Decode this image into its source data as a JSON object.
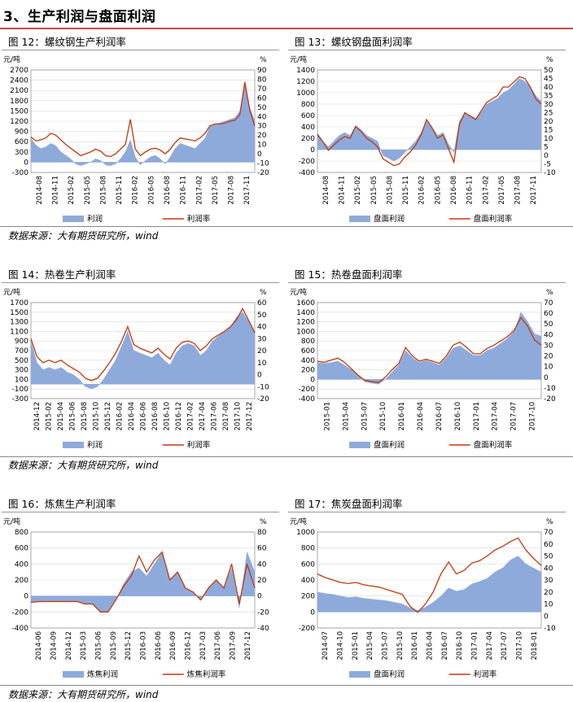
{
  "section_title": "3、生产利润与盘面利润",
  "source_text": "数据来源：大有期货研究所，wind",
  "colors": {
    "area": "#8eaadb",
    "line": "#c0390b"
  },
  "charts": [
    {
      "id": "fig12",
      "title": "图 12：螺纹钢生产利润率",
      "chart_data": {
        "type": "area",
        "ylabel_left": "元/吨",
        "ylabel_right": "%",
        "left_ticks": [
          2700,
          2400,
          2100,
          1800,
          1500,
          1200,
          900,
          600,
          300,
          0,
          -300
        ],
        "right_ticks": [
          90,
          80,
          70,
          60,
          50,
          40,
          30,
          20,
          10,
          0,
          -10,
          -20
        ],
        "ylim_left": [
          -300,
          2700
        ],
        "ylim_right": [
          -20,
          90
        ],
        "x_ticks": [
          "2014-08",
          "2014-11",
          "2015-02",
          "2015-05",
          "2015-08",
          "2015-11",
          "2016-02",
          "2016-05",
          "2016-08",
          "2016-11",
          "2017-02",
          "2017-05",
          "2017-08",
          "2017-11"
        ],
        "series": [
          {
            "name": "利润",
            "axis": "left",
            "kind": "area",
            "values": [
              700,
              500,
              400,
              450,
              550,
              480,
              300,
              200,
              100,
              -50,
              -100,
              -50,
              0,
              100,
              50,
              -80,
              -100,
              -50,
              100,
              300,
              650,
              150,
              -80,
              50,
              150,
              200,
              100,
              -50,
              150,
              400,
              550,
              500,
              450,
              400,
              550,
              700,
              1050,
              1100,
              1150,
              1200,
              1250,
              1300,
              1500,
              2300,
              1600,
              1200
            ]
          },
          {
            "name": "利润率",
            "axis": "right",
            "kind": "line",
            "values": [
              18,
              14,
              15,
              17,
              22,
              20,
              15,
              10,
              6,
              2,
              -2,
              0,
              2,
              5,
              3,
              -2,
              -3,
              0,
              5,
              10,
              37,
              5,
              -2,
              2,
              5,
              6,
              4,
              0,
              5,
              12,
              17,
              16,
              15,
              14,
              17,
              22,
              30,
              32,
              32,
              33,
              35,
              36,
              42,
              77,
              47,
              30
            ]
          }
        ]
      },
      "legend": [
        "利润",
        "利润率"
      ]
    },
    {
      "id": "fig13",
      "title": "图 13：螺纹钢盘面利润率",
      "chart_data": {
        "type": "area",
        "ylabel_left": "元/吨",
        "ylabel_right": "%",
        "left_ticks": [
          1400,
          1200,
          1000,
          800,
          600,
          400,
          200,
          0,
          -200,
          -400
        ],
        "right_ticks": [
          50,
          45,
          40,
          35,
          30,
          25,
          20,
          15,
          10,
          5,
          0,
          -5,
          -10
        ],
        "ylim_left": [
          -400,
          1400
        ],
        "ylim_right": [
          -10,
          50
        ],
        "x_ticks": [
          "2014-08",
          "2014-11",
          "2015-02",
          "2015-05",
          "2015-08",
          "2015-11",
          "2016-02",
          "2016-05",
          "2016-08",
          "2016-11",
          "2017-02",
          "2017-05",
          "2017-08",
          "2017-11"
        ],
        "series": [
          {
            "name": "盘面利润",
            "axis": "left",
            "kind": "area",
            "values": [
              300,
              150,
              50,
              150,
              250,
              300,
              250,
              420,
              350,
              250,
              200,
              150,
              -100,
              -150,
              -200,
              -150,
              -50,
              50,
              150,
              300,
              500,
              400,
              250,
              300,
              100,
              -50,
              500,
              650,
              600,
              550,
              650,
              800,
              850,
              900,
              1000,
              1050,
              1150,
              1250,
              1200,
              1100,
              950,
              850
            ]
          },
          {
            "name": "盘面利润率",
            "axis": "right",
            "kind": "line",
            "values": [
              12,
              8,
              3,
              6,
              9,
              11,
              10,
              17,
              14,
              10,
              8,
              5,
              -2,
              -4,
              -6,
              -5,
              -1,
              2,
              6,
              12,
              21,
              16,
              10,
              12,
              4,
              -4,
              18,
              25,
              23,
              21,
              26,
              31,
              33,
              35,
              40,
              40,
              43,
              46,
              45,
              40,
              33,
              30
            ]
          }
        ]
      },
      "legend": [
        "盘面利润",
        "盘面利润率"
      ]
    },
    {
      "id": "fig14",
      "title": "图 14：热卷生产利润率",
      "chart_data": {
        "type": "area",
        "ylabel_left": "元/吨",
        "ylabel_right": "%",
        "left_ticks": [
          1700,
          1500,
          1300,
          1100,
          900,
          700,
          500,
          300,
          100,
          -100,
          -300
        ],
        "right_ticks": [
          60,
          50,
          40,
          30,
          20,
          10,
          0,
          -10,
          -20
        ],
        "ylim_left": [
          -300,
          1700
        ],
        "ylim_right": [
          -20,
          60
        ],
        "x_ticks": [
          "2014-12",
          "2015-02",
          "2015-04",
          "2015-06",
          "2015-08",
          "2015-10",
          "2015-12",
          "2016-02",
          "2016-04",
          "2016-06",
          "2016-08",
          "2016-10",
          "2016-12",
          "2017-02",
          "2017-04",
          "2017-06",
          "2017-08",
          "2017-10",
          "2017-12"
        ],
        "series": [
          {
            "name": "利润",
            "axis": "left",
            "kind": "area",
            "values": [
              900,
              450,
              300,
              350,
              300,
              350,
              250,
              200,
              100,
              -50,
              -100,
              -50,
              100,
              300,
              500,
              800,
              1100,
              700,
              650,
              600,
              550,
              650,
              500,
              400,
              650,
              800,
              850,
              800,
              600,
              700,
              900,
              1000,
              1100,
              1200,
              1400,
              1500,
              1300,
              1050
            ]
          },
          {
            "name": "利润率",
            "axis": "right",
            "kind": "line",
            "values": [
              30,
              15,
              10,
              12,
              10,
              12,
              8,
              5,
              2,
              -3,
              -5,
              -3,
              3,
              10,
              18,
              28,
              40,
              25,
              22,
              20,
              18,
              22,
              17,
              13,
              22,
              27,
              28,
              26,
              20,
              24,
              30,
              33,
              36,
              40,
              46,
              55,
              45,
              35
            ]
          }
        ]
      },
      "legend": [
        "利润",
        "利润率"
      ]
    },
    {
      "id": "fig15",
      "title": "图 15：热卷盘面利润率",
      "chart_data": {
        "type": "area",
        "ylabel_left": "元/吨",
        "ylabel_right": "%",
        "left_ticks": [
          1600,
          1400,
          1200,
          1000,
          800,
          600,
          400,
          200,
          0,
          -200,
          -400
        ],
        "right_ticks": [
          70,
          60,
          50,
          40,
          30,
          20,
          10,
          0,
          -10,
          -20
        ],
        "ylim_left": [
          -400,
          1600
        ],
        "ylim_right": [
          -20,
          70
        ],
        "x_ticks": [
          "2015-01",
          "2015-04",
          "2015-07",
          "2015-10",
          "2016-01",
          "2016-04",
          "2016-07",
          "2016-10",
          "2017-01",
          "2017-04",
          "2017-07",
          "2017-10"
        ],
        "series": [
          {
            "name": "盘面利润",
            "axis": "left",
            "kind": "area",
            "values": [
              350,
              330,
              350,
              380,
              300,
              200,
              100,
              -50,
              -80,
              -100,
              0,
              150,
              300,
              600,
              450,
              350,
              400,
              350,
              300,
              450,
              650,
              700,
              600,
              500,
              500,
              600,
              650,
              750,
              850,
              1000,
              1400,
              1200,
              950,
              900
            ]
          },
          {
            "name": "盘面利润率",
            "axis": "right",
            "kind": "line",
            "values": [
              15,
              14,
              16,
              18,
              14,
              8,
              2,
              -3,
              -4,
              -5,
              0,
              7,
              13,
              28,
              20,
              15,
              17,
              15,
              13,
              20,
              30,
              33,
              28,
              22,
              22,
              27,
              30,
              34,
              38,
              44,
              56,
              48,
              35,
              30
            ]
          }
        ]
      },
      "legend": [
        "盘面利润",
        "盘面利润率"
      ]
    },
    {
      "id": "fig16",
      "title": "图 16：炼焦生产利润率",
      "chart_data": {
        "type": "area",
        "ylabel_left": "元/吨",
        "ylabel_right": "%",
        "left_ticks": [
          800,
          600,
          400,
          200,
          0,
          -200,
          -400
        ],
        "right_ticks": [
          80,
          60,
          40,
          20,
          0,
          -20,
          -40
        ],
        "ylim_left": [
          -400,
          800
        ],
        "ylim_right": [
          -40,
          80
        ],
        "x_ticks": [
          "2014-06",
          "2014-09",
          "2014-12",
          "2015-03",
          "2015-06",
          "2015-09",
          "2015-12",
          "2016-03",
          "2016-06",
          "2016-09",
          "2016-12",
          "2017-03",
          "2017-06",
          "2017-09",
          "2017-12"
        ],
        "series": [
          {
            "name": "炼焦利润",
            "axis": "left",
            "kind": "area",
            "values": [
              -80,
              -70,
              -70,
              -70,
              -70,
              -70,
              -70,
              -100,
              -100,
              -200,
              -200,
              -50,
              150,
              300,
              350,
              250,
              400,
              550,
              200,
              300,
              100,
              50,
              -50,
              100,
              200,
              100,
              350,
              -150,
              550,
              300
            ]
          },
          {
            "name": "炼焦利润率",
            "axis": "right",
            "kind": "line",
            "values": [
              -8,
              -7,
              -7,
              -7,
              -7,
              -7,
              -7,
              -10,
              -10,
              -20,
              -20,
              -5,
              12,
              25,
              50,
              30,
              45,
              55,
              20,
              30,
              10,
              5,
              -5,
              10,
              20,
              10,
              40,
              -10,
              40,
              10
            ]
          }
        ]
      },
      "legend": [
        "炼焦利润",
        "炼焦利润率"
      ]
    },
    {
      "id": "fig17",
      "title": "图 17：焦炭盘面利润率",
      "chart_data": {
        "type": "area",
        "ylabel_left": "元/吨",
        "ylabel_right": "%",
        "left_ticks": [
          1000,
          800,
          600,
          400,
          200,
          0,
          -200
        ],
        "right_ticks": [
          70,
          60,
          50,
          40,
          30,
          20,
          10,
          0,
          -10
        ],
        "ylim_left": [
          -200,
          1000
        ],
        "ylim_right": [
          -10,
          70
        ],
        "x_ticks": [
          "2014-07",
          "2014-10",
          "2015-01",
          "2015-04",
          "2015-07",
          "2015-10",
          "2016-01",
          "2016-04",
          "2016-07",
          "2016-10",
          "2017-01",
          "2017-04",
          "2017-07",
          "2017-10",
          "2018-01"
        ],
        "series": [
          {
            "name": "盘面利润",
            "axis": "left",
            "kind": "area",
            "values": [
              250,
              230,
              220,
              200,
              180,
              190,
              170,
              160,
              150,
              140,
              120,
              100,
              50,
              20,
              60,
              120,
              200,
              300,
              260,
              280,
              350,
              380,
              420,
              500,
              550,
              650,
              700,
              600,
              550,
              500
            ]
          },
          {
            "name": "利润率",
            "axis": "right",
            "kind": "line",
            "values": [
              35,
              32,
              30,
              28,
              27,
              28,
              26,
              25,
              24,
              22,
              20,
              18,
              8,
              3,
              10,
              20,
              35,
              45,
              35,
              38,
              44,
              46,
              50,
              55,
              58,
              62,
              65,
              55,
              48,
              42
            ]
          }
        ]
      },
      "legend": [
        "盘面利润",
        "利润率"
      ]
    }
  ]
}
